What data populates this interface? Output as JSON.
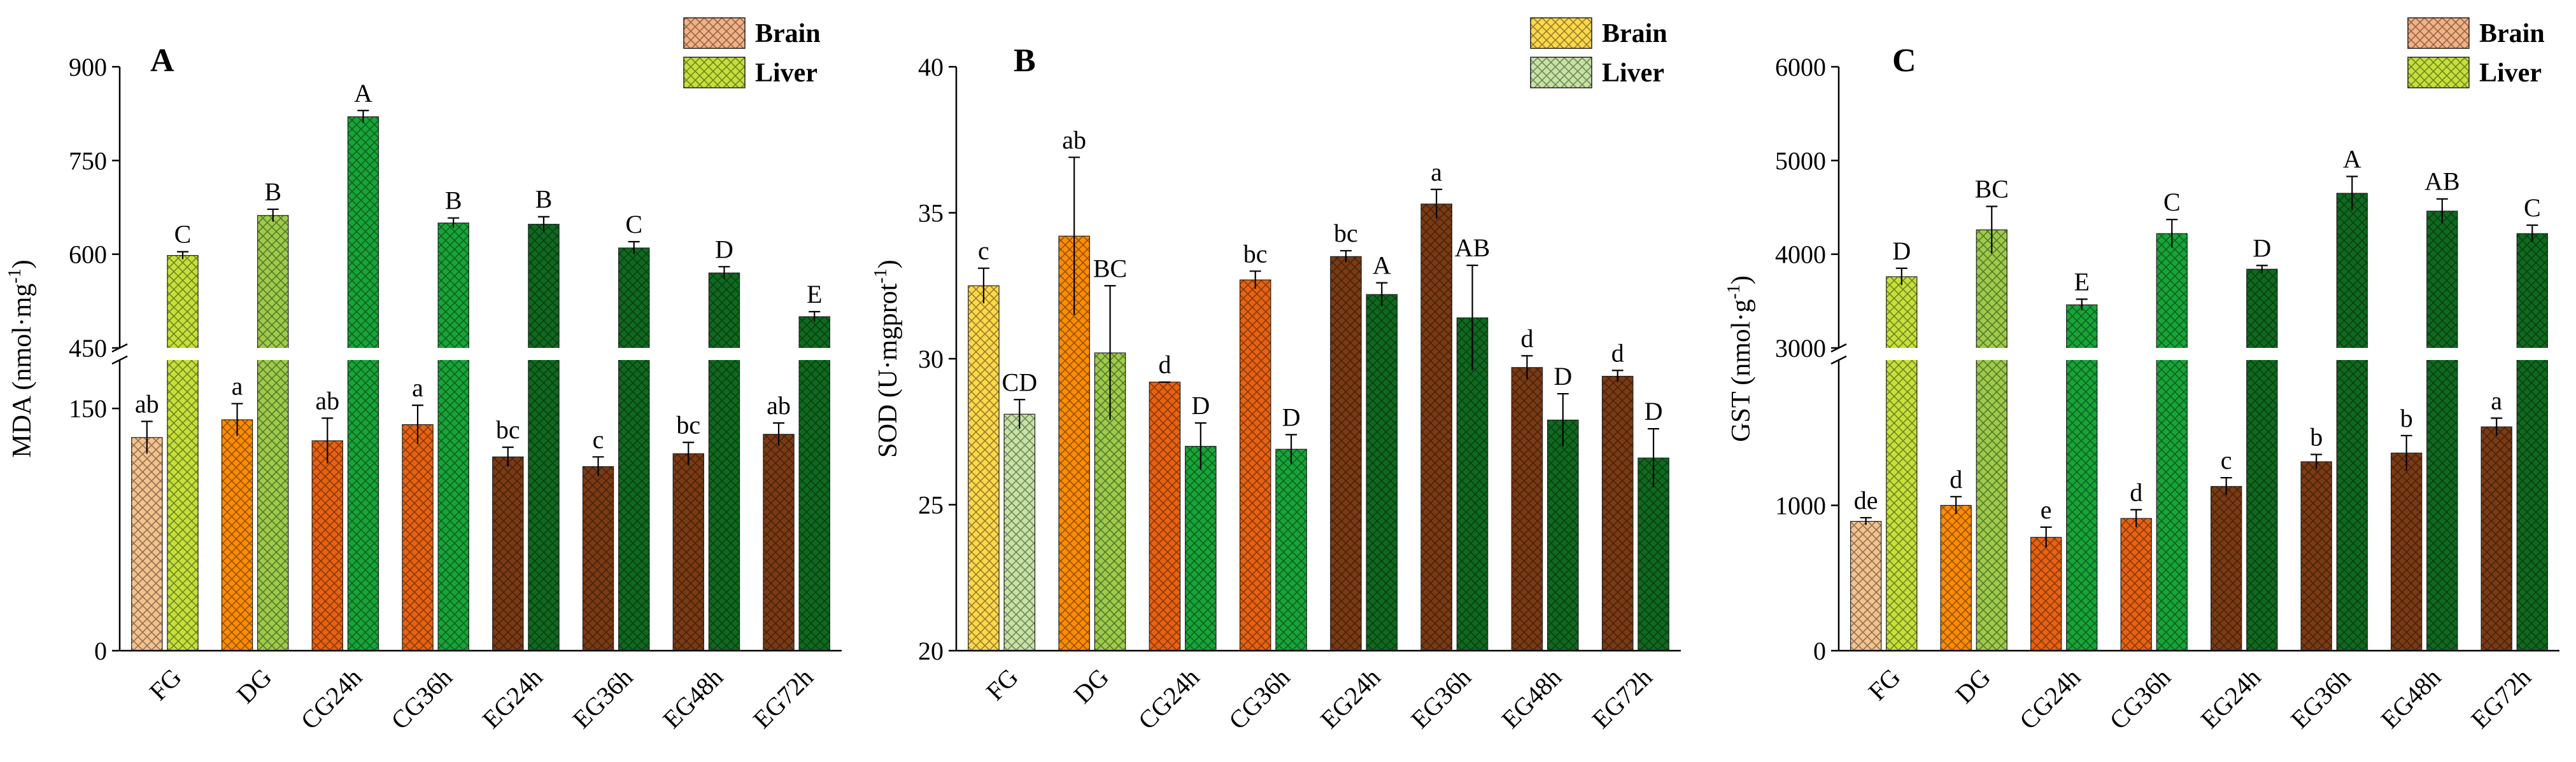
{
  "chart_data": [
    {
      "type": "bar",
      "panel_label": "A",
      "ylabel": "MDA (nmol·mg",
      "ylabel_sup": "-1",
      "ylabel_close": ")",
      "axis_break": {
        "lower_max": 180,
        "upper_min": 450,
        "upper_max": 900
      },
      "lower_ticks": [
        "0",
        "150"
      ],
      "upper_ticks": [
        "450",
        "600",
        "750",
        "900"
      ],
      "categories": [
        "FG",
        "DG",
        "CG24h",
        "CG36h",
        "EG24h",
        "EG36h",
        "EG48h",
        "EG72h"
      ],
      "legend": [
        "Brain",
        "Liver"
      ],
      "series": [
        {
          "name": "Brain",
          "values": [
            132,
            143,
            130,
            140,
            120,
            114,
            122,
            134
          ],
          "errors": [
            10,
            10,
            14,
            12,
            6,
            6,
            7,
            7
          ],
          "labels": [
            "ab",
            "a",
            "ab",
            "a",
            "bc",
            "c",
            "bc",
            "ab"
          ]
        },
        {
          "name": "Liver",
          "values": [
            598,
            662,
            820,
            650,
            648,
            610,
            570,
            500
          ],
          "errors": [
            6,
            10,
            10,
            8,
            12,
            10,
            10,
            8
          ],
          "labels": [
            "C",
            "B",
            "A",
            "B",
            "B",
            "C",
            "D",
            "E"
          ]
        }
      ]
    },
    {
      "type": "bar",
      "panel_label": "B",
      "ylabel": "SOD (U·mgprot",
      "ylabel_sup": "-1",
      "ylabel_close": ")",
      "ylim": [
        20,
        40
      ],
      "yticks": [
        "20",
        "25",
        "30",
        "35",
        "40"
      ],
      "categories": [
        "FG",
        "DG",
        "CG24h",
        "CG36h",
        "EG24h",
        "EG36h",
        "EG48h",
        "EG72h"
      ],
      "legend": [
        "Brain",
        "Liver"
      ],
      "series": [
        {
          "name": "Brain",
          "values": [
            32.5,
            34.2,
            29.2,
            32.7,
            33.5,
            35.3,
            29.7,
            29.4
          ],
          "errors": [
            0.6,
            2.7,
            0.0,
            0.3,
            0.2,
            0.5,
            0.4,
            0.2
          ],
          "labels": [
            "c",
            "ab",
            "d",
            "bc",
            "bc",
            "a",
            "d",
            "d"
          ]
        },
        {
          "name": "Liver",
          "values": [
            28.1,
            30.2,
            27.0,
            26.9,
            32.2,
            31.4,
            27.9,
            26.6
          ],
          "errors": [
            0.5,
            2.3,
            0.8,
            0.5,
            0.4,
            1.8,
            0.9,
            1.0
          ],
          "labels": [
            "CD",
            "BC",
            "D",
            "D",
            "A",
            "AB",
            "D",
            "D"
          ]
        }
      ]
    },
    {
      "type": "bar",
      "panel_label": "C",
      "ylabel": "GST (nmol·g",
      "ylabel_sup": "-1",
      "ylabel_close": ")",
      "axis_break": {
        "lower_max": 2000,
        "upper_min": 3000,
        "upper_max": 6000
      },
      "lower_ticks": [
        "0",
        "1000"
      ],
      "upper_ticks": [
        "3000",
        "4000",
        "5000",
        "6000"
      ],
      "categories": [
        "FG",
        "DG",
        "CG24h",
        "CG36h",
        "EG24h",
        "EG36h",
        "EG48h",
        "EG72h"
      ],
      "legend": [
        "Brain",
        "Liver"
      ],
      "series": [
        {
          "name": "Brain",
          "values": [
            890,
            1000,
            780,
            910,
            1130,
            1300,
            1360,
            1540
          ],
          "errors": [
            25,
            60,
            70,
            60,
            60,
            50,
            120,
            60
          ],
          "labels": [
            "de",
            "d",
            "e",
            "d",
            "c",
            "b",
            "b",
            "a"
          ]
        },
        {
          "name": "Liver",
          "values": [
            3760,
            4260,
            3460,
            4220,
            3840,
            4650,
            4460,
            4220
          ],
          "errors": [
            90,
            250,
            60,
            150,
            40,
            180,
            130,
            90
          ],
          "labels": [
            "D",
            "BC",
            "E",
            "C",
            "D",
            "A",
            "AB",
            "C"
          ]
        }
      ]
    }
  ]
}
